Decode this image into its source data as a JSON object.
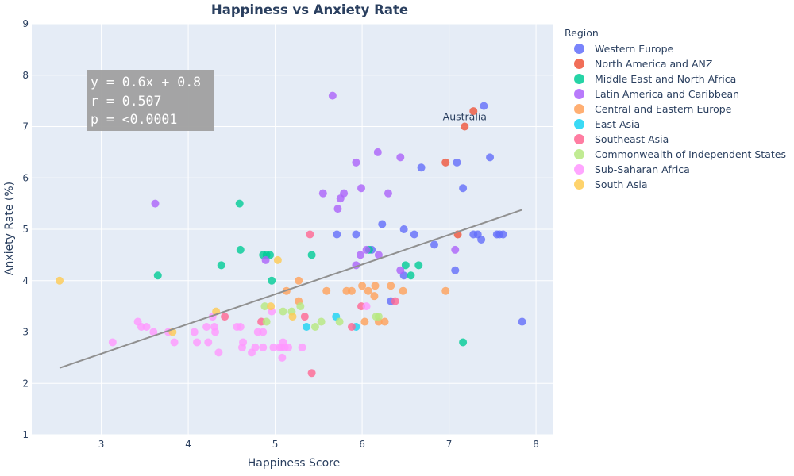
{
  "chart_data": {
    "type": "scatter",
    "title": "Happiness vs Anxiety Rate",
    "xlabel": "Happiness Score",
    "ylabel": "Anxiety Rate (%)",
    "xlim": [
      2.2,
      8.2
    ],
    "ylim": [
      1,
      9
    ],
    "xticks": [
      3,
      4,
      5,
      6,
      7,
      8
    ],
    "yticks": [
      1,
      2,
      3,
      4,
      5,
      6,
      7,
      8,
      9
    ],
    "grid": true,
    "legend": {
      "title": "Region",
      "placement": "right"
    },
    "annotations": [
      {
        "text": "Australia",
        "x": 7.18,
        "y": 7.0
      }
    ],
    "trendline": {
      "x": [
        2.52,
        7.84
      ],
      "y": [
        2.3,
        5.38
      ]
    },
    "stats": [
      "y = 0.6x + 0.8",
      "r = 0.507",
      "p = <0.0001"
    ],
    "series": [
      {
        "name": "Western Europe",
        "color": "#636efa",
        "points": [
          [
            7.4,
            7.4
          ],
          [
            7.47,
            6.4
          ],
          [
            7.09,
            6.3
          ],
          [
            6.68,
            6.2
          ],
          [
            7.16,
            5.8
          ],
          [
            6.23,
            5.1
          ],
          [
            6.48,
            5.0
          ],
          [
            5.71,
            4.9
          ],
          [
            5.93,
            4.9
          ],
          [
            6.6,
            4.9
          ],
          [
            7.28,
            4.9
          ],
          [
            7.33,
            4.9
          ],
          [
            7.55,
            4.9
          ],
          [
            7.58,
            4.9
          ],
          [
            7.62,
            4.9
          ],
          [
            7.37,
            4.8
          ],
          [
            6.83,
            4.7
          ],
          [
            6.11,
            4.6
          ],
          [
            6.48,
            4.1
          ],
          [
            7.07,
            4.2
          ],
          [
            6.33,
            3.6
          ],
          [
            7.84,
            3.2
          ]
        ]
      },
      {
        "name": "North America and ANZ",
        "color": "#EF553B",
        "points": [
          [
            7.28,
            7.3
          ],
          [
            7.18,
            7.0
          ],
          [
            6.96,
            6.3
          ],
          [
            7.1,
            4.9
          ]
        ]
      },
      {
        "name": "Middle East and North Africa",
        "color": "#00cc96",
        "points": [
          [
            4.59,
            5.5
          ],
          [
            4.6,
            4.6
          ],
          [
            4.86,
            4.5
          ],
          [
            4.9,
            4.5
          ],
          [
            4.94,
            4.5
          ],
          [
            5.42,
            4.5
          ],
          [
            6.08,
            4.6
          ],
          [
            4.38,
            4.3
          ],
          [
            6.5,
            4.3
          ],
          [
            6.65,
            4.3
          ],
          [
            3.65,
            4.1
          ],
          [
            6.56,
            4.1
          ],
          [
            4.96,
            4.0
          ],
          [
            7.16,
            2.8
          ]
        ]
      },
      {
        "name": "Latin America and Caribbean",
        "color": "#ab63fa",
        "points": [
          [
            5.66,
            7.6
          ],
          [
            5.93,
            6.3
          ],
          [
            6.18,
            6.5
          ],
          [
            6.44,
            6.4
          ],
          [
            3.62,
            5.5
          ],
          [
            5.55,
            5.7
          ],
          [
            5.79,
            5.7
          ],
          [
            6.3,
            5.7
          ],
          [
            5.99,
            5.8
          ],
          [
            5.75,
            5.6
          ],
          [
            5.72,
            5.4
          ],
          [
            6.05,
            4.6
          ],
          [
            5.98,
            4.5
          ],
          [
            6.19,
            4.5
          ],
          [
            4.89,
            4.4
          ],
          [
            5.93,
            4.3
          ],
          [
            6.44,
            4.2
          ],
          [
            7.07,
            4.6
          ]
        ]
      },
      {
        "name": "Central and Eastern Europe",
        "color": "#FFA15A",
        "points": [
          [
            5.27,
            4.0
          ],
          [
            5.59,
            3.8
          ],
          [
            5.82,
            3.8
          ],
          [
            5.88,
            3.8
          ],
          [
            5.13,
            3.8
          ],
          [
            6.07,
            3.8
          ],
          [
            6.15,
            3.9
          ],
          [
            6.33,
            3.9
          ],
          [
            6.47,
            3.8
          ],
          [
            6.96,
            3.8
          ],
          [
            6.14,
            3.7
          ],
          [
            5.27,
            3.6
          ],
          [
            6.0,
            3.9
          ],
          [
            6.03,
            3.2
          ],
          [
            6.19,
            3.2
          ],
          [
            6.26,
            3.2
          ]
        ]
      },
      {
        "name": "East Asia",
        "color": "#19d3f3",
        "points": [
          [
            5.36,
            3.1
          ],
          [
            5.7,
            3.3
          ],
          [
            5.93,
            3.1
          ]
        ]
      },
      {
        "name": "Southeast Asia",
        "color": "#FF6692",
        "points": [
          [
            5.4,
            4.9
          ],
          [
            4.42,
            3.3
          ],
          [
            4.84,
            3.2
          ],
          [
            5.34,
            3.3
          ],
          [
            5.99,
            3.5
          ],
          [
            6.38,
            3.6
          ],
          [
            5.88,
            3.1
          ],
          [
            5.42,
            2.2
          ]
        ]
      },
      {
        "name": "Commonwealth of Independent States",
        "color": "#B6E880",
        "points": [
          [
            4.88,
            3.5
          ],
          [
            5.09,
            3.4
          ],
          [
            5.19,
            3.4
          ],
          [
            5.29,
            3.5
          ],
          [
            4.9,
            3.2
          ],
          [
            5.46,
            3.1
          ],
          [
            5.53,
            3.2
          ],
          [
            5.74,
            3.2
          ],
          [
            6.16,
            3.3
          ],
          [
            6.19,
            3.3
          ]
        ]
      },
      {
        "name": "Sub-Saharan Africa",
        "color": "#FF97FF",
        "points": [
          [
            3.13,
            2.8
          ],
          [
            3.42,
            3.2
          ],
          [
            3.46,
            3.1
          ],
          [
            3.52,
            3.1
          ],
          [
            3.6,
            3.0
          ],
          [
            3.77,
            3.0
          ],
          [
            3.84,
            2.8
          ],
          [
            4.07,
            3.0
          ],
          [
            4.1,
            2.8
          ],
          [
            4.21,
            3.1
          ],
          [
            4.28,
            3.3
          ],
          [
            4.3,
            3.1
          ],
          [
            4.31,
            3.0
          ],
          [
            4.23,
            2.8
          ],
          [
            4.35,
            2.6
          ],
          [
            4.56,
            3.1
          ],
          [
            4.6,
            3.1
          ],
          [
            4.62,
            2.7
          ],
          [
            4.63,
            2.8
          ],
          [
            4.73,
            2.6
          ],
          [
            4.77,
            2.7
          ],
          [
            4.8,
            3.0
          ],
          [
            4.86,
            3.0
          ],
          [
            4.86,
            2.7
          ],
          [
            4.96,
            3.4
          ],
          [
            4.98,
            2.7
          ],
          [
            5.05,
            2.7
          ],
          [
            5.07,
            2.7
          ],
          [
            5.08,
            2.5
          ],
          [
            5.09,
            2.8
          ],
          [
            5.11,
            2.7
          ],
          [
            5.15,
            2.7
          ],
          [
            5.31,
            2.7
          ],
          [
            6.05,
            3.5
          ]
        ]
      },
      {
        "name": "South Asia",
        "color": "#FECB52",
        "points": [
          [
            2.52,
            4.0
          ],
          [
            3.82,
            3.0
          ],
          [
            4.32,
            3.4
          ],
          [
            4.95,
            3.5
          ],
          [
            5.03,
            4.4
          ],
          [
            5.2,
            3.3
          ]
        ]
      }
    ]
  }
}
